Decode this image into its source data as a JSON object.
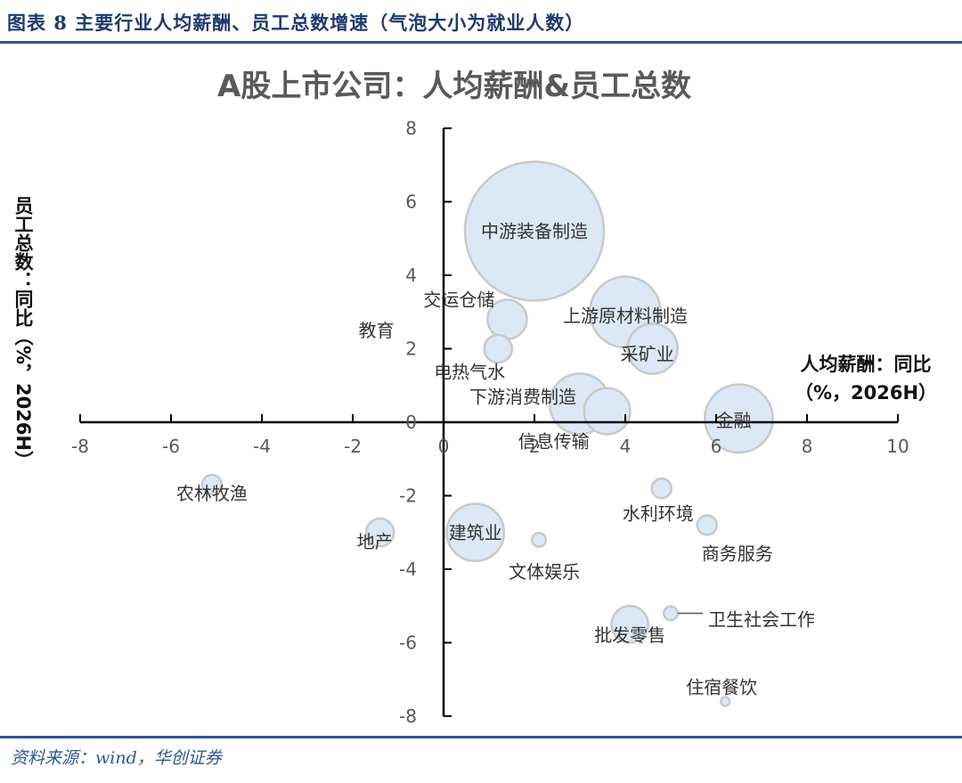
{
  "caption": "图表 8 主要行业人均薪酬、员工总数增速（气泡大小为就业人数）",
  "source": "资料来源：wind，华创证券",
  "colors": {
    "bubble_fill": "#dce8f5",
    "bubble_stroke": "#c9c9c9",
    "axis": "#000000",
    "rule": "#2f5597"
  },
  "chart_data": {
    "type": "scatter",
    "title": "A股上市公司：人均薪酬&员工总数",
    "xlabel_lines": [
      "人均薪酬：同比",
      "（%，2026H）"
    ],
    "ylabel": "员工总数：同比（%，2026H）",
    "xlim": [
      -8,
      10
    ],
    "ylim": [
      -8,
      8
    ],
    "xticks": [
      "-8",
      "-6",
      "-4",
      "-2",
      "0",
      "2",
      "4",
      "6",
      "8",
      "10"
    ],
    "yticks": [
      "8",
      "6",
      "4",
      "2",
      "0",
      "-2",
      "-4",
      "-6",
      "-8"
    ],
    "points": [
      {
        "label": "中游装备制造",
        "x": 2.0,
        "y": 5.2,
        "size": 100
      },
      {
        "label": "上游原材料制造",
        "x": 4.0,
        "y": 3.0,
        "size": 26
      },
      {
        "label": "采矿业",
        "x": 4.6,
        "y": 2.0,
        "size": 13
      },
      {
        "label": "交运仓储",
        "x": 1.4,
        "y": 2.8,
        "size": 8
      },
      {
        "label": "电热气水",
        "x": 1.2,
        "y": 2.0,
        "size": 4
      },
      {
        "label": "教育",
        "x": -1.5,
        "y": 2.5,
        "size": 0
      },
      {
        "label": "下游消费制造",
        "x": 3.0,
        "y": 0.5,
        "size": 19
      },
      {
        "label": "信息传输",
        "x": 3.6,
        "y": 0.3,
        "size": 11
      },
      {
        "label": "金融",
        "x": 6.5,
        "y": 0.1,
        "size": 24
      },
      {
        "label": "农林牧渔",
        "x": -5.1,
        "y": -1.7,
        "size": 2
      },
      {
        "label": "地产",
        "x": -1.4,
        "y": -3.0,
        "size": 4
      },
      {
        "label": "建筑业",
        "x": 0.7,
        "y": -3.0,
        "size": 17
      },
      {
        "label": "文体娱乐",
        "x": 2.1,
        "y": -3.2,
        "size": 1
      },
      {
        "label": "水利环境",
        "x": 4.8,
        "y": -1.8,
        "size": 2
      },
      {
        "label": "商务服务",
        "x": 5.8,
        "y": -2.8,
        "size": 2
      },
      {
        "label": "批发零售",
        "x": 4.1,
        "y": -5.5,
        "size": 7
      },
      {
        "label": "卫生社会工作",
        "x": 5.0,
        "y": -5.2,
        "size": 1
      },
      {
        "label": "住宿餐饮",
        "x": 6.2,
        "y": -7.6,
        "size": 0.4
      }
    ]
  }
}
